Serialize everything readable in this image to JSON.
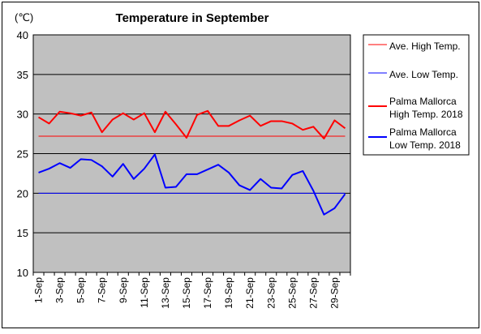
{
  "chart_data": {
    "type": "line",
    "title": "Temperature in September",
    "unit_label": "(℃)",
    "ylim": [
      10,
      40
    ],
    "y_ticks": [
      "10",
      "15",
      "20",
      "25",
      "30",
      "35",
      "40"
    ],
    "x": [
      "1-Sep",
      "2-Sep",
      "3-Sep",
      "4-Sep",
      "5-Sep",
      "6-Sep",
      "7-Sep",
      "8-Sep",
      "9-Sep",
      "10-Sep",
      "11-Sep",
      "12-Sep",
      "13-Sep",
      "14-Sep",
      "15-Sep",
      "16-Sep",
      "17-Sep",
      "18-Sep",
      "19-Sep",
      "20-Sep",
      "21-Sep",
      "22-Sep",
      "23-Sep",
      "24-Sep",
      "25-Sep",
      "26-Sep",
      "27-Sep",
      "28-Sep",
      "29-Sep",
      "30-Sep"
    ],
    "x_tick_labels": [
      "1-Sep",
      "3-Sep",
      "5-Sep",
      "7-Sep",
      "9-Sep",
      "11-Sep",
      "13-Sep",
      "15-Sep",
      "17-Sep",
      "19-Sep",
      "21-Sep",
      "23-Sep",
      "25-Sep",
      "27-Sep",
      "29-Sep"
    ],
    "grid": "horizontal",
    "legend_position": "right",
    "plot_background": "#c0c0c0",
    "series": [
      {
        "name": "Ave. High Temp.",
        "legend": [
          "Ave. High Temp."
        ],
        "color": "#ff0000",
        "width": "thin",
        "values": [
          27.2,
          27.2,
          27.2,
          27.2,
          27.2,
          27.2,
          27.2,
          27.2,
          27.2,
          27.2,
          27.2,
          27.2,
          27.2,
          27.2,
          27.2,
          27.2,
          27.2,
          27.2,
          27.2,
          27.2,
          27.2,
          27.2,
          27.2,
          27.2,
          27.2,
          27.2,
          27.2,
          27.2,
          27.2,
          27.2
        ]
      },
      {
        "name": "Ave. Low Temp.",
        "legend": [
          "Ave. Low Temp."
        ],
        "color": "#0000ff",
        "width": "thin",
        "values": [
          20.0,
          20.0,
          20.0,
          20.0,
          20.0,
          20.0,
          20.0,
          20.0,
          20.0,
          20.0,
          20.0,
          20.0,
          20.0,
          20.0,
          20.0,
          20.0,
          20.0,
          20.0,
          20.0,
          20.0,
          20.0,
          20.0,
          20.0,
          20.0,
          20.0,
          20.0,
          20.0,
          20.0,
          20.0,
          20.0
        ]
      },
      {
        "name": "Palma Mallorca High Temp. 2018",
        "legend": [
          "Palma Mallorca",
          "High Temp. 2018"
        ],
        "color": "#ff0000",
        "width": "thick",
        "values": [
          29.6,
          28.8,
          30.3,
          30.1,
          29.8,
          30.2,
          27.7,
          29.3,
          30.1,
          29.3,
          30.1,
          27.7,
          30.3,
          28.7,
          27.0,
          29.9,
          30.4,
          28.5,
          28.5,
          29.2,
          29.8,
          28.5,
          29.1,
          29.1,
          28.8,
          28.0,
          28.4,
          26.9,
          29.2,
          28.2
        ]
      },
      {
        "name": "Palma Mallorca Low Temp. 2018",
        "legend": [
          "Palma Mallorca",
          "Low Temp. 2018"
        ],
        "color": "#0000ff",
        "width": "thick",
        "values": [
          22.6,
          23.1,
          23.8,
          23.2,
          24.3,
          24.2,
          23.4,
          22.1,
          23.7,
          21.8,
          23.1,
          24.9,
          20.7,
          20.8,
          22.4,
          22.4,
          23.0,
          23.6,
          22.6,
          21.0,
          20.4,
          21.8,
          20.7,
          20.6,
          22.3,
          22.8,
          20.3,
          17.3,
          18.1,
          19.9
        ]
      }
    ]
  }
}
